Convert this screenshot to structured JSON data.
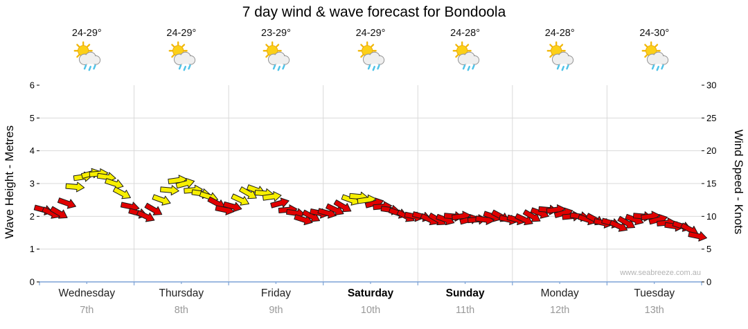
{
  "title": "7 day wind & wave forecast for Bondoola",
  "watermark": "www.seabreeze.com.au",
  "days": [
    {
      "temp": "24-29°",
      "name": "Wednesday",
      "date": "7th",
      "bold": false
    },
    {
      "temp": "24-29°",
      "name": "Thursday",
      "date": "8th",
      "bold": false
    },
    {
      "temp": "23-29°",
      "name": "Friday",
      "date": "9th",
      "bold": false
    },
    {
      "temp": "24-29°",
      "name": "Saturday",
      "date": "10th",
      "bold": true
    },
    {
      "temp": "24-28°",
      "name": "Sunday",
      "date": "11th",
      "bold": true
    },
    {
      "temp": "24-28°",
      "name": "Monday",
      "date": "12th",
      "bold": false
    },
    {
      "temp": "24-30°",
      "name": "Tuesday",
      "date": "13th",
      "bold": false
    }
  ],
  "weather_icon": "sun-cloud-rain",
  "chart_data": {
    "type": "line",
    "subtype": "wind-direction-arrow-series",
    "title": "7 day wind & wave forecast for Bondoola",
    "x_unit": "hours",
    "x_range_hours": [
      0,
      168
    ],
    "first_sample_hour": 1,
    "sample_interval_hours": 2,
    "x_tick_labels": [
      "Wednesday",
      "Thursday",
      "Friday",
      "Saturday",
      "Sunday",
      "Monday",
      "Tuesday"
    ],
    "y_left": {
      "label": "Wave Height - Metres",
      "range": [
        0,
        6
      ],
      "ticks": [
        0,
        1,
        2,
        3,
        4,
        5,
        6
      ]
    },
    "y_right": {
      "label": "Wind Speed - Knots",
      "range": [
        0,
        30
      ],
      "ticks": [
        0,
        5,
        10,
        15,
        20,
        25,
        30
      ]
    },
    "grid": true,
    "moderate_threshold_knots": 12.5,
    "arrow_colors": {
      "light": "#e10000",
      "moderate": "#f7ef00"
    },
    "wind_speed_knots": [
      11,
      10.5,
      10.5,
      12,
      14.5,
      16,
      16.5,
      16.5,
      16,
      15,
      13.5,
      11.5,
      10.5,
      10,
      11,
      12.5,
      14,
      15.5,
      15,
      14,
      13.5,
      13,
      12,
      11,
      11.5,
      12.5,
      13.5,
      14,
      13.5,
      13,
      12,
      11,
      10.5,
      9.5,
      10,
      10.5,
      10.5,
      11,
      11.5,
      12.5,
      13,
      12.5,
      12,
      11.5,
      11,
      10.5,
      10,
      10,
      10,
      9.5,
      9.5,
      9.5,
      10,
      10,
      9.5,
      9.5,
      9.5,
      10,
      10,
      9.5,
      9.5,
      9.5,
      10,
      10.5,
      11,
      11,
      10.5,
      10,
      10,
      9.5,
      9.5,
      9,
      9,
      8.5,
      9,
      9.5,
      10,
      10,
      9.5,
      9,
      8.5,
      8.5,
      8,
      7
    ],
    "wind_dir_deg": [
      15,
      25,
      30,
      20,
      5,
      -8,
      -15,
      -5,
      8,
      18,
      28,
      12,
      15,
      25,
      30,
      20,
      5,
      -8,
      -15,
      -5,
      8,
      18,
      28,
      12,
      15,
      25,
      30,
      20,
      5,
      -8,
      -15,
      -5,
      8,
      18,
      28,
      12,
      15,
      25,
      30,
      20,
      5,
      -8,
      -15,
      -5,
      8,
      18,
      28,
      12,
      15,
      25,
      30,
      20,
      5,
      -8,
      -15,
      -5,
      8,
      18,
      28,
      12,
      15,
      25,
      30,
      20,
      5,
      -8,
      -15,
      -5,
      8,
      18,
      28,
      12,
      15,
      25,
      30,
      20,
      5,
      -8,
      -15,
      -5,
      8,
      18,
      28,
      12
    ]
  }
}
